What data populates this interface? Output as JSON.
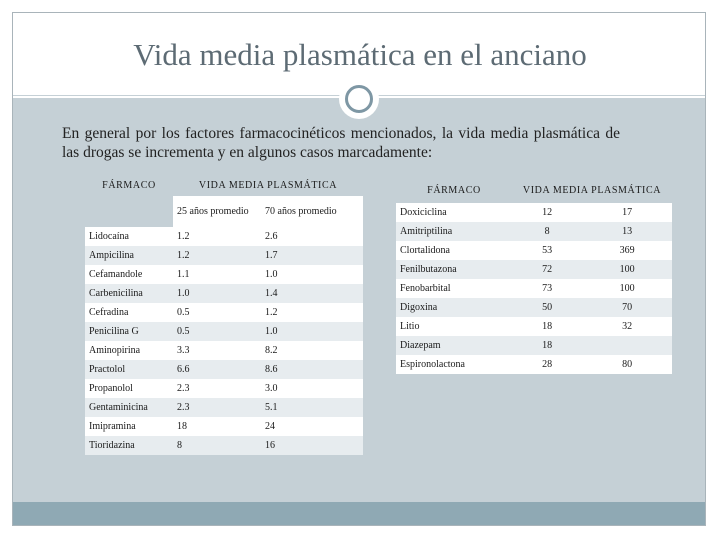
{
  "title": "Vida media plasmática en el anciano",
  "intro": "En general por los factores farmacocinéticos mencionados, la vida media plasmática de las drogas se incrementa y en algunos casos marcadamente:",
  "table1": {
    "col_drug": "FÁRMACO",
    "col_half": "VIDA MEDIA PLASMÁTICA",
    "sub_young": "25 años promedio",
    "sub_old": "70 años promedio",
    "rows": [
      {
        "drug": "Lidocaína",
        "young": "1.2",
        "old": "2.6"
      },
      {
        "drug": "Ampicilina",
        "young": "1.2",
        "old": "1.7"
      },
      {
        "drug": "Cefamandole",
        "young": "1.1",
        "old": "1.0"
      },
      {
        "drug": "Carbenicilina",
        "young": "1.0",
        "old": "1.4"
      },
      {
        "drug": "Cefradina",
        "young": "0.5",
        "old": "1.2"
      },
      {
        "drug": "Penicilina G",
        "young": "0.5",
        "old": "1.0"
      },
      {
        "drug": "Aminopirina",
        "young": "3.3",
        "old": "8.2"
      },
      {
        "drug": "Practolol",
        "young": "6.6",
        "old": "8.6"
      },
      {
        "drug": "Propanolol",
        "young": "2.3",
        "old": "3.0"
      },
      {
        "drug": "Gentaminicina",
        "young": "2.3",
        "old": "5.1"
      },
      {
        "drug": "Imipramina",
        "young": "18",
        "old": "24"
      },
      {
        "drug": "Tioridazina",
        "young": "8",
        "old": "16"
      }
    ]
  },
  "table2": {
    "col_drug": "FÁRMACO",
    "col_half": "VIDA MEDIA PLASMÁTICA",
    "rows": [
      {
        "drug": "Doxiciclina",
        "young": "12",
        "old": "17"
      },
      {
        "drug": "Amitriptilina",
        "young": "8",
        "old": "13"
      },
      {
        "drug": "Clortalidona",
        "young": "53",
        "old": "369"
      },
      {
        "drug": "Fenilbutazona",
        "young": "72",
        "old": "100"
      },
      {
        "drug": "Fenobarbital",
        "young": "73",
        "old": "100"
      },
      {
        "drug": "Digoxina",
        "young": "50",
        "old": "70"
      },
      {
        "drug": "Litio",
        "young": "18",
        "old": "32"
      },
      {
        "drug": "Diazepam",
        "young": "18",
        "old": ""
      },
      {
        "drug": "Espironolactona",
        "young": "28",
        "old": "80"
      }
    ]
  },
  "colors": {
    "background_panel": "#c5d0d6",
    "title_text": "#5d6b74",
    "bottom_bar": "#8fa9b4",
    "ring": "#7e97a4"
  }
}
